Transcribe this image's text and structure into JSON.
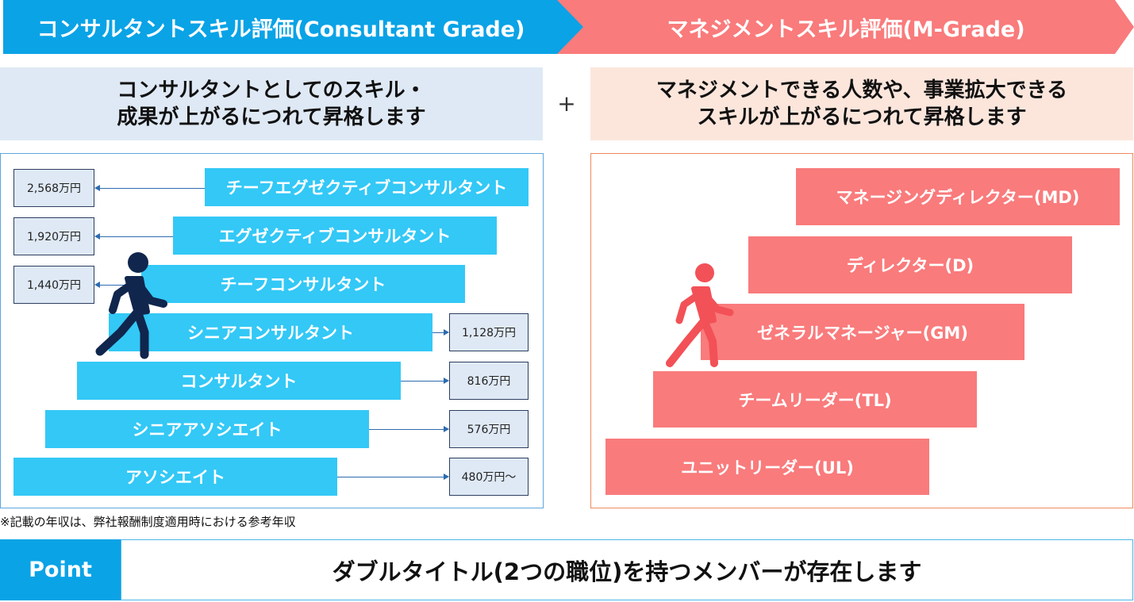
{
  "header": {
    "consultant_title": "コンサルタントスキル評価(Consultant Grade)",
    "management_title": "マネジメントスキル評価(M-Grade)"
  },
  "descriptions": {
    "consultant": "コンサルタントとしてのスキル・\n成果が上がるにつれて昇格します",
    "plus": "+",
    "management": "マネジメントできる人数や、事業拡大できる\nスキルが上がるにつれて昇格します"
  },
  "consultant_grades": [
    {
      "label": "チーフエグゼクティブコンサルタント",
      "salary": "2,568万円"
    },
    {
      "label": "エグゼクティブコンサルタント",
      "salary": "1,920万円"
    },
    {
      "label": "チーフコンサルタント",
      "salary": "1,440万円"
    },
    {
      "label": "シニアコンサルタント",
      "salary": "1,128万円"
    },
    {
      "label": "コンサルタント",
      "salary": "816万円"
    },
    {
      "label": "シニアアソシエイト",
      "salary": "576万円"
    },
    {
      "label": "アソシエイト",
      "salary": "480万円〜"
    }
  ],
  "management_grades": [
    {
      "label": "マネージングディレクター(MD)"
    },
    {
      "label": "ディレクター(D)"
    },
    {
      "label": "ゼネラルマネージャー(GM)"
    },
    {
      "label": "チームリーダー(TL)"
    },
    {
      "label": "ユニットリーダー(UL)"
    }
  ],
  "note": "※記載の年収は、弊社報酬制度適用時における参考年収",
  "point": {
    "label": "Point",
    "text": "ダブルタイトル(2つの職位)を持つメンバーが存在します"
  },
  "colors": {
    "consultant_banner": "#0aa3e6",
    "management_banner": "#f97b7c",
    "consultant_bar": "#33c8f6",
    "management_bar": "#f97b7c",
    "walker_blue": "#10264d",
    "walker_red": "#f25157"
  },
  "icons": [
    "walking-person-icon"
  ]
}
